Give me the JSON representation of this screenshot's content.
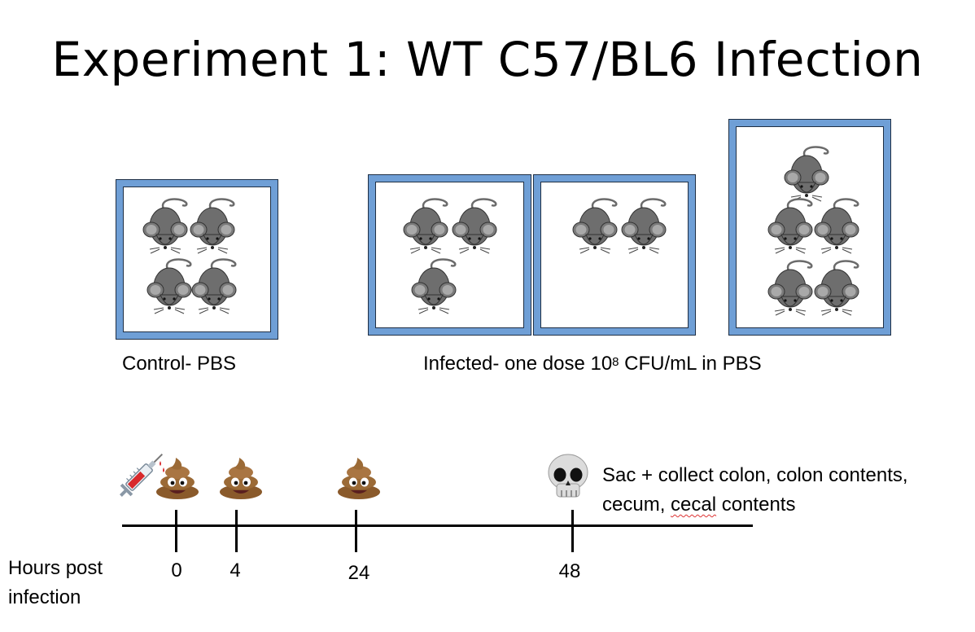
{
  "title": "Experiment 1: WT C57/BL6 Infection",
  "groups": {
    "control": {
      "label": "Control- PBS",
      "mice_per_cage": [
        4
      ]
    },
    "infected": {
      "label_prefix": "Infected- one dose 10",
      "label_sup": "8",
      "label_suffix": " CFU/mL in PBS",
      "mice_per_cage": [
        3,
        2,
        5
      ]
    }
  },
  "timeline": {
    "axis_label_line1": "Hours post",
    "axis_label_line2": "infection",
    "ticks": [
      "0",
      "4",
      "24",
      "48"
    ],
    "events": [
      {
        "time": "0",
        "icons": [
          "syringe-icon",
          "poop-icon"
        ]
      },
      {
        "time": "4",
        "icons": [
          "poop-icon"
        ]
      },
      {
        "time": "24",
        "icons": [
          "poop-icon"
        ]
      },
      {
        "time": "48",
        "icons": [
          "skull-icon"
        ]
      }
    ],
    "end_note_line1": "Sac + collect colon, colon contents,",
    "end_note_line2_a": "cecum, ",
    "end_note_line2_b": "cecal",
    "end_note_line2_c": " contents"
  },
  "colors": {
    "cage_frame": "#6f9fd6",
    "mouse_body": "#6e6e6e",
    "mouse_ear": "#a9a9a9"
  }
}
